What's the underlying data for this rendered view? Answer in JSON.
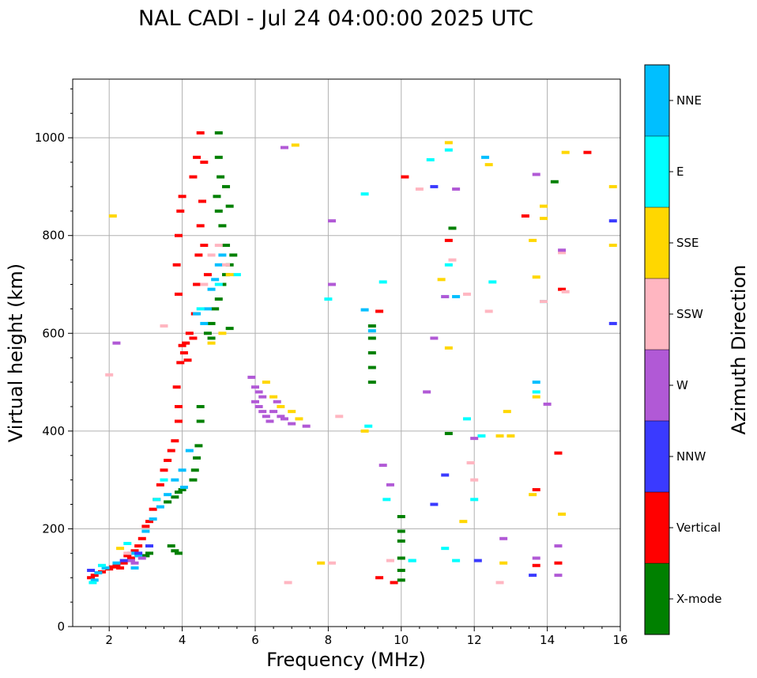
{
  "chart_data": {
    "type": "scatter",
    "title": "NAL CADI - Jul 24 04:00:00 2025 UTC",
    "xlabel": "Frequency (MHz)",
    "ylabel": "Virtual height (km)",
    "xlim": [
      1,
      16
    ],
    "ylim": [
      0,
      1120
    ],
    "grid": true,
    "xticks": [
      2,
      4,
      6,
      8,
      10,
      12,
      14,
      16
    ],
    "xtick_labels": [
      "2",
      "4",
      "6",
      "8",
      "10",
      "12",
      "14",
      "16"
    ],
    "yticks": [
      0,
      200,
      400,
      600,
      800,
      1000
    ],
    "ytick_labels": [
      "0",
      "200",
      "400",
      "600",
      "800",
      "1000"
    ],
    "colorbar": {
      "label": "Azimuth Direction",
      "categories": [
        "X-mode",
        "Vertical",
        "NNW",
        "W",
        "SSW",
        "SSE",
        "E",
        "NNE"
      ],
      "colors": [
        "#008000",
        "#ff0000",
        "#3a3aff",
        "#b159d6",
        "#ffb6c1",
        "#ffd700",
        "#00ffff",
        "#00bfff"
      ]
    },
    "series": [
      {
        "name": "Vertical",
        "points": [
          [
            1.5,
            100
          ],
          [
            1.6,
            105
          ],
          [
            1.8,
            112
          ],
          [
            2.0,
            118
          ],
          [
            2.1,
            122
          ],
          [
            2.2,
            125
          ],
          [
            2.3,
            120
          ],
          [
            2.4,
            130
          ],
          [
            2.5,
            145
          ],
          [
            2.6,
            140
          ],
          [
            2.7,
            155
          ],
          [
            2.8,
            165
          ],
          [
            2.9,
            180
          ],
          [
            3.0,
            205
          ],
          [
            3.1,
            215
          ],
          [
            3.2,
            240
          ],
          [
            3.3,
            260
          ],
          [
            3.4,
            290
          ],
          [
            3.5,
            320
          ],
          [
            3.6,
            340
          ],
          [
            3.7,
            360
          ],
          [
            3.8,
            380
          ],
          [
            3.9,
            420
          ],
          [
            3.9,
            450
          ],
          [
            3.85,
            490
          ],
          [
            3.95,
            540
          ],
          [
            4.0,
            575
          ],
          [
            4.05,
            560
          ],
          [
            4.1,
            580
          ],
          [
            4.15,
            545
          ],
          [
            4.2,
            600
          ],
          [
            4.3,
            590
          ],
          [
            4.35,
            640
          ],
          [
            4.4,
            700
          ],
          [
            4.45,
            760
          ],
          [
            4.5,
            820
          ],
          [
            4.55,
            870
          ],
          [
            4.6,
            950
          ],
          [
            4.5,
            1010
          ],
          [
            3.9,
            680
          ],
          [
            3.85,
            740
          ],
          [
            3.9,
            800
          ],
          [
            3.95,
            850
          ],
          [
            4.0,
            880
          ],
          [
            4.3,
            920
          ],
          [
            4.4,
            960
          ],
          [
            4.7,
            720
          ],
          [
            4.6,
            780
          ],
          [
            9.4,
            645
          ],
          [
            10.1,
            920
          ],
          [
            11.3,
            790
          ],
          [
            13.4,
            840
          ],
          [
            14.4,
            690
          ],
          [
            15.1,
            970
          ],
          [
            14.3,
            355
          ],
          [
            13.7,
            280
          ],
          [
            13.7,
            125
          ],
          [
            14.3,
            130
          ],
          [
            9.4,
            100
          ],
          [
            9.8,
            90
          ]
        ]
      },
      {
        "name": "X-mode",
        "points": [
          [
            3.7,
            165
          ],
          [
            3.8,
            155
          ],
          [
            3.9,
            150
          ],
          [
            3.1,
            150
          ],
          [
            3.0,
            145
          ],
          [
            3.6,
            255
          ],
          [
            3.8,
            265
          ],
          [
            3.9,
            275
          ],
          [
            4.0,
            280
          ],
          [
            4.3,
            300
          ],
          [
            4.35,
            320
          ],
          [
            4.4,
            345
          ],
          [
            4.45,
            370
          ],
          [
            4.5,
            420
          ],
          [
            4.5,
            450
          ],
          [
            4.7,
            600
          ],
          [
            4.8,
            620
          ],
          [
            4.9,
            650
          ],
          [
            5.0,
            670
          ],
          [
            5.1,
            700
          ],
          [
            5.2,
            720
          ],
          [
            5.3,
            740
          ],
          [
            5.2,
            780
          ],
          [
            5.1,
            820
          ],
          [
            5.0,
            850
          ],
          [
            4.95,
            880
          ],
          [
            5.05,
            920
          ],
          [
            5.2,
            900
          ],
          [
            5.3,
            860
          ],
          [
            5.0,
            960
          ],
          [
            5.0,
            1010
          ],
          [
            5.4,
            760
          ],
          [
            5.3,
            610
          ],
          [
            4.8,
            590
          ],
          [
            9.2,
            500
          ],
          [
            9.2,
            530
          ],
          [
            9.2,
            560
          ],
          [
            9.2,
            590
          ],
          [
            9.2,
            615
          ],
          [
            10.0,
            95
          ],
          [
            10.0,
            115
          ],
          [
            10.0,
            140
          ],
          [
            10.0,
            175
          ],
          [
            10.0,
            195
          ],
          [
            10.0,
            225
          ],
          [
            11.3,
            395
          ],
          [
            11.4,
            815
          ],
          [
            14.2,
            910
          ]
        ]
      },
      {
        "name": "NNE",
        "points": [
          [
            1.6,
            95
          ],
          [
            1.7,
            110
          ],
          [
            1.9,
            120
          ],
          [
            2.2,
            130
          ],
          [
            2.6,
            150
          ],
          [
            2.8,
            145
          ],
          [
            3.0,
            195
          ],
          [
            3.2,
            220
          ],
          [
            3.4,
            245
          ],
          [
            3.6,
            270
          ],
          [
            3.8,
            300
          ],
          [
            4.0,
            320
          ],
          [
            4.05,
            285
          ],
          [
            4.2,
            360
          ],
          [
            4.4,
            640
          ],
          [
            4.6,
            620
          ],
          [
            4.8,
            690
          ],
          [
            4.9,
            710
          ],
          [
            5.0,
            740
          ],
          [
            5.1,
            760
          ],
          [
            4.7,
            650
          ],
          [
            2.7,
            120
          ],
          [
            9.0,
            648
          ],
          [
            9.2,
            605
          ],
          [
            10.3,
            135
          ],
          [
            11.5,
            675
          ],
          [
            12.3,
            960
          ],
          [
            13.7,
            500
          ]
        ]
      },
      {
        "name": "E",
        "points": [
          [
            1.55,
            90
          ],
          [
            1.8,
            125
          ],
          [
            2.5,
            170
          ],
          [
            3.3,
            260
          ],
          [
            3.5,
            300
          ],
          [
            4.5,
            650
          ],
          [
            5.0,
            700
          ],
          [
            5.5,
            720
          ],
          [
            9.0,
            885
          ],
          [
            9.5,
            705
          ],
          [
            9.6,
            260
          ],
          [
            10.8,
            955
          ],
          [
            11.3,
            975
          ],
          [
            11.3,
            740
          ],
          [
            12.5,
            705
          ],
          [
            13.9,
            665
          ],
          [
            12.2,
            390
          ],
          [
            11.8,
            425
          ],
          [
            11.2,
            160
          ],
          [
            9.1,
            410
          ],
          [
            8.0,
            670
          ],
          [
            10.3,
            135
          ],
          [
            11.5,
            135
          ],
          [
            13.7,
            480
          ],
          [
            11.2,
            675
          ],
          [
            12.0,
            260
          ]
        ]
      },
      {
        "name": "SSE",
        "points": [
          [
            2.1,
            840
          ],
          [
            2.3,
            160
          ],
          [
            6.3,
            500
          ],
          [
            6.5,
            470
          ],
          [
            6.7,
            450
          ],
          [
            7.0,
            440
          ],
          [
            7.2,
            425
          ],
          [
            4.8,
            580
          ],
          [
            5.1,
            600
          ],
          [
            5.3,
            720
          ],
          [
            7.1,
            985
          ],
          [
            7.8,
            130
          ],
          [
            9.0,
            400
          ],
          [
            11.1,
            710
          ],
          [
            11.3,
            570
          ],
          [
            12.4,
            945
          ],
          [
            12.7,
            390
          ],
          [
            12.9,
            440
          ],
          [
            13.0,
            390
          ],
          [
            12.8,
            130
          ],
          [
            13.9,
            860
          ],
          [
            13.9,
            835
          ],
          [
            13.7,
            715
          ],
          [
            13.7,
            470
          ],
          [
            14.4,
            230
          ],
          [
            14.5,
            970
          ],
          [
            15.8,
            900
          ],
          [
            15.8,
            780
          ],
          [
            11.3,
            990
          ],
          [
            11.7,
            215
          ],
          [
            13.6,
            270
          ],
          [
            13.6,
            790
          ]
        ]
      },
      {
        "name": "SSW",
        "points": [
          [
            2.0,
            515
          ],
          [
            2.5,
            150
          ],
          [
            3.5,
            615
          ],
          [
            4.6,
            700
          ],
          [
            4.8,
            760
          ],
          [
            5.0,
            780
          ],
          [
            5.2,
            740
          ],
          [
            6.9,
            90
          ],
          [
            8.1,
            130
          ],
          [
            8.3,
            430
          ],
          [
            9.7,
            135
          ],
          [
            10.5,
            895
          ],
          [
            11.4,
            750
          ],
          [
            11.8,
            680
          ],
          [
            12.0,
            300
          ],
          [
            12.4,
            645
          ],
          [
            12.7,
            90
          ],
          [
            11.9,
            335
          ],
          [
            14.5,
            685
          ],
          [
            14.4,
            765
          ],
          [
            13.9,
            665
          ]
        ]
      },
      {
        "name": "W",
        "points": [
          [
            5.9,
            510
          ],
          [
            6.0,
            490
          ],
          [
            6.1,
            480
          ],
          [
            6.2,
            470
          ],
          [
            6.0,
            460
          ],
          [
            6.1,
            450
          ],
          [
            6.2,
            440
          ],
          [
            6.3,
            430
          ],
          [
            6.4,
            420
          ],
          [
            6.5,
            440
          ],
          [
            6.6,
            460
          ],
          [
            6.7,
            430
          ],
          [
            6.8,
            425
          ],
          [
            7.0,
            415
          ],
          [
            7.4,
            410
          ],
          [
            2.7,
            130
          ],
          [
            2.9,
            140
          ],
          [
            2.6,
            135
          ],
          [
            2.2,
            580
          ],
          [
            6.8,
            980
          ],
          [
            8.1,
            830
          ],
          [
            8.1,
            700
          ],
          [
            9.5,
            330
          ],
          [
            9.7,
            290
          ],
          [
            10.7,
            480
          ],
          [
            10.9,
            590
          ],
          [
            11.2,
            675
          ],
          [
            11.5,
            895
          ],
          [
            12.0,
            385
          ],
          [
            12.8,
            180
          ],
          [
            13.7,
            925
          ],
          [
            13.7,
            140
          ],
          [
            14.0,
            455
          ],
          [
            14.3,
            165
          ],
          [
            14.3,
            105
          ],
          [
            14.4,
            770
          ]
        ]
      },
      {
        "name": "NNW",
        "points": [
          [
            1.5,
            115
          ],
          [
            2.4,
            135
          ],
          [
            2.8,
            150
          ],
          [
            3.1,
            165
          ],
          [
            10.9,
            900
          ],
          [
            11.2,
            310
          ],
          [
            12.1,
            135
          ],
          [
            13.6,
            105
          ],
          [
            15.8,
            830
          ],
          [
            15.8,
            620
          ],
          [
            10.9,
            250
          ]
        ]
      }
    ]
  }
}
